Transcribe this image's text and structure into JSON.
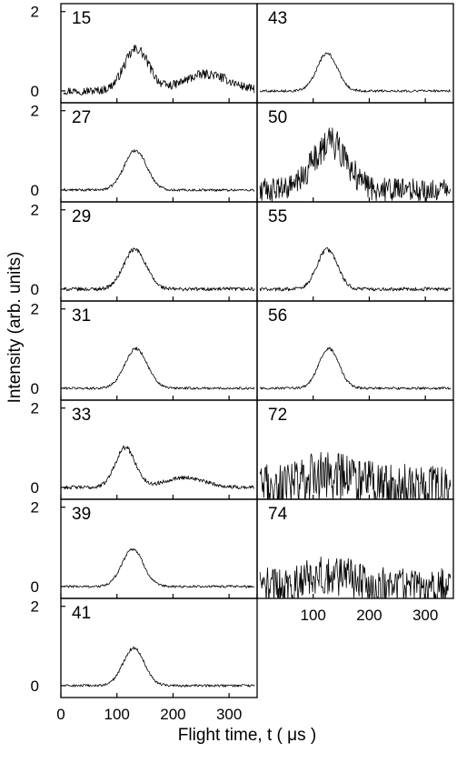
{
  "chart_data": {
    "type": "line",
    "xlabel": "Flight time, t ( μs )",
    "ylabel": "Intensity (arb. units)",
    "xlim": [
      0,
      350
    ],
    "ylim": [
      -0.3,
      2.2
    ],
    "xticks": [
      0,
      100,
      200,
      300
    ],
    "yticks": [
      0,
      2
    ],
    "panels": [
      {
        "label": "15",
        "column": 0,
        "row": 0,
        "peak_t": 135,
        "peak_height": 1.05,
        "width": 22,
        "noise": 0.13,
        "second_peak_t": 260,
        "second_peak_height": 0.42,
        "second_width": 40
      },
      {
        "label": "27",
        "column": 0,
        "row": 1,
        "peak_t": 133,
        "peak_height": 1.0,
        "width": 20,
        "noise": 0.04
      },
      {
        "label": "29",
        "column": 0,
        "row": 2,
        "peak_t": 132,
        "peak_height": 1.0,
        "width": 20,
        "noise": 0.06
      },
      {
        "label": "31",
        "column": 0,
        "row": 3,
        "peak_t": 134,
        "peak_height": 1.0,
        "width": 20,
        "noise": 0.04
      },
      {
        "label": "33",
        "column": 0,
        "row": 4,
        "peak_t": 115,
        "peak_height": 1.0,
        "width": 18,
        "noise": 0.06,
        "second_peak_t": 220,
        "second_peak_height": 0.25,
        "second_width": 35
      },
      {
        "label": "39",
        "column": 0,
        "row": 5,
        "peak_t": 128,
        "peak_height": 0.95,
        "width": 19,
        "noise": 0.04
      },
      {
        "label": "41",
        "column": 0,
        "row": 6,
        "peak_t": 130,
        "peak_height": 0.95,
        "width": 19,
        "noise": 0.04
      },
      {
        "label": "43",
        "column": 1,
        "row": 0,
        "peak_t": 125,
        "peak_height": 0.95,
        "width": 18,
        "noise": 0.04
      },
      {
        "label": "50",
        "column": 1,
        "row": 1,
        "peak_t": 130,
        "peak_height": 1.2,
        "width": 30,
        "noise": 0.38
      },
      {
        "label": "55",
        "column": 1,
        "row": 2,
        "peak_t": 125,
        "peak_height": 1.0,
        "width": 18,
        "noise": 0.06
      },
      {
        "label": "56",
        "column": 1,
        "row": 3,
        "peak_t": 128,
        "peak_height": 1.0,
        "width": 18,
        "noise": 0.04
      },
      {
        "label": "72",
        "column": 1,
        "row": 4,
        "peak_t": 130,
        "peak_height": 0.3,
        "width": 40,
        "noise": 0.75
      },
      {
        "label": "74",
        "column": 1,
        "row": 5,
        "peak_t": 130,
        "peak_height": 0.3,
        "width": 40,
        "noise": 0.6
      }
    ]
  },
  "colors": {
    "trace": "#000000",
    "frame": "#000000",
    "background": "#ffffff"
  }
}
